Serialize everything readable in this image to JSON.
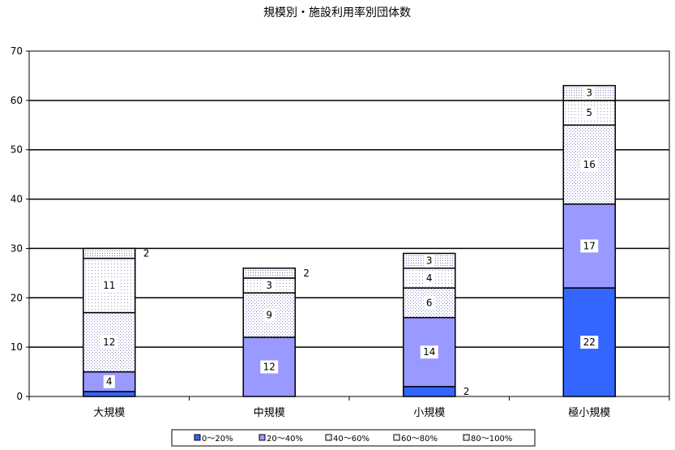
{
  "chart_data": {
    "type": "bar",
    "stacked": true,
    "title": "規模別・施設利用率別団体数",
    "xlabel": "",
    "ylabel": "",
    "categories": [
      "大規模",
      "中規模",
      "小規模",
      "極小規模"
    ],
    "ylim": [
      0,
      70
    ],
    "yticks": [
      "0",
      "10",
      "20",
      "30",
      "40",
      "50",
      "60",
      "70"
    ],
    "grid": true,
    "legend_position": "bottom",
    "series": [
      {
        "name": "0～20%",
        "values": [
          1,
          0,
          2,
          22
        ],
        "color": "#3355ee",
        "labels": [
          "",
          "",
          "2",
          "22"
        ]
      },
      {
        "name": "20～40%",
        "values": [
          4,
          12,
          14,
          17
        ],
        "color": "#9999ff",
        "labels": [
          "4",
          "12",
          "14",
          "17"
        ]
      },
      {
        "name": "40～60%",
        "values": [
          12,
          9,
          6,
          16
        ],
        "color": "#c8d0ee",
        "labels": [
          "12",
          "9",
          "6",
          "16"
        ]
      },
      {
        "name": "60～80%",
        "values": [
          11,
          3,
          4,
          5
        ],
        "color": "#e4e8f6",
        "labels": [
          "11",
          "3",
          "4",
          "5"
        ]
      },
      {
        "name": "80～100%",
        "values": [
          2,
          2,
          3,
          3
        ],
        "color": "#d8dcec",
        "labels": [
          "2",
          "2",
          "3",
          "3"
        ]
      }
    ]
  }
}
